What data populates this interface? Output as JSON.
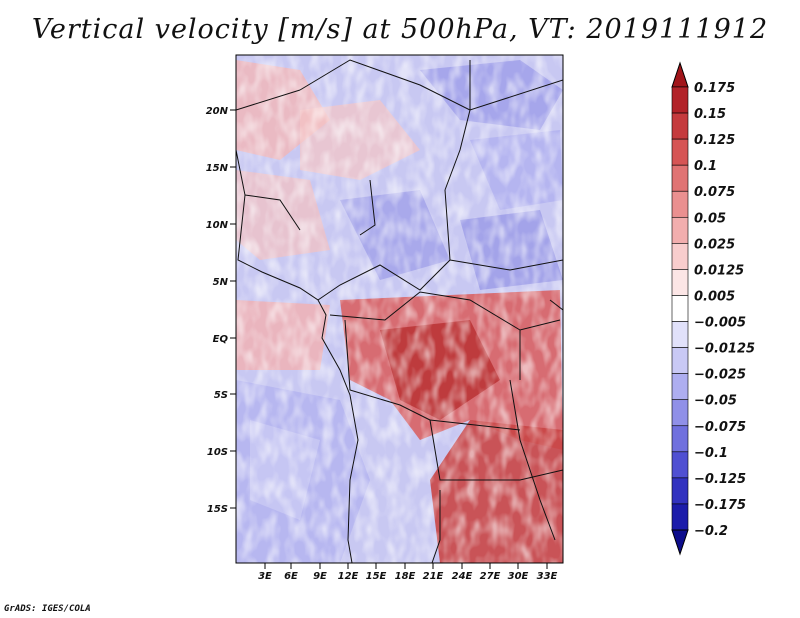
{
  "title": "Vertical velocity [m/s] at 500hPa, VT: 2019111912",
  "credit": "GrADS: IGES/COLA",
  "map": {
    "lat_ticks": [
      "20N",
      "15N",
      "10N",
      "5N",
      "EQ",
      "5S",
      "10S",
      "15S"
    ],
    "lon_ticks": [
      "3E",
      "6E",
      "9E",
      "12E",
      "15E",
      "18E",
      "21E",
      "24E",
      "27E",
      "30E",
      "33E"
    ]
  },
  "colorbar": {
    "labels": [
      "0.175",
      "0.15",
      "0.125",
      "0.1",
      "0.075",
      "0.05",
      "0.025",
      "0.0125",
      "0.005",
      "−0.005",
      "−0.0125",
      "−0.025",
      "−0.05",
      "−0.075",
      "−0.1",
      "−0.125",
      "−0.175",
      "−0.2"
    ],
    "colors": [
      "#a1151a",
      "#b22228",
      "#c53a3d",
      "#d65555",
      "#e07373",
      "#ea9090",
      "#f2aeae",
      "#f8cdcd",
      "#fce6e6",
      "#ffffff",
      "#e1e1fa",
      "#c9c9f5",
      "#aeaef0",
      "#9090e8",
      "#7070de",
      "#5050d2",
      "#3232bf",
      "#1c1caa",
      "#0d0d8c"
    ]
  }
}
